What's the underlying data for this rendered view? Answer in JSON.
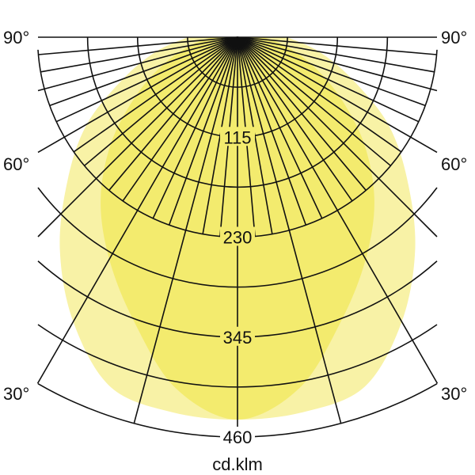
{
  "chart_data": {
    "type": "polar",
    "unit_label": "cd.klm",
    "radial_ticks": [
      115,
      230,
      345,
      460
    ],
    "radial_max": 460,
    "grid": true,
    "angle_labels_left": [
      "90°",
      "60°",
      "30°"
    ],
    "angle_labels_right": [
      "90°",
      "60°",
      "30°"
    ],
    "angles_deg": [
      0,
      10,
      20,
      30,
      40,
      50,
      60,
      70,
      80,
      90
    ],
    "series": [
      {
        "values": [
          440,
          438,
          428,
          378,
          318,
          255,
          200,
          140,
          95,
          57
        ],
        "color": "#f8f2a6"
      },
      {
        "values": [
          440,
          410,
          348,
          295,
          245,
          190,
          135,
          90,
          55,
          30
        ],
        "color": "#f3eb6e"
      }
    ]
  }
}
